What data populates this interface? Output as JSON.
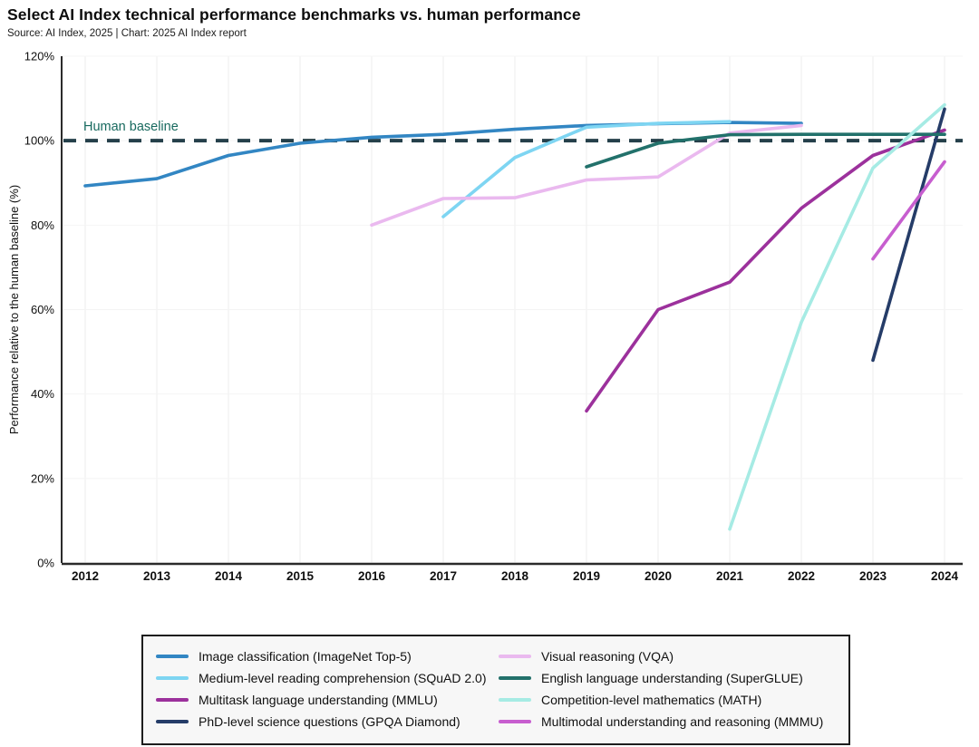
{
  "header": {
    "title": "Select AI Index technical performance benchmarks vs. human performance",
    "source": "Source: AI Index, 2025 | Chart: 2025 AI Index report"
  },
  "chart_data": {
    "type": "line",
    "title": "Select AI Index technical performance benchmarks vs. human performance",
    "xlabel": "",
    "ylabel": "Performance relative to the human baseline (%)",
    "ylim": [
      0,
      120
    ],
    "ytick_step": 20,
    "ytick_suffix": "%",
    "x_ticks": [
      2012,
      2013,
      2014,
      2015,
      2016,
      2017,
      2018,
      2019,
      2020,
      2021,
      2022,
      2023,
      2024
    ],
    "grid": true,
    "legend_position": "bottom",
    "legend_columns": 2,
    "baseline": {
      "label": "Human baseline",
      "value": 100,
      "line_color": "#25404a",
      "label_color": "#17695e"
    },
    "series": [
      {
        "name": "Image classification (ImageNet Top-5)",
        "color": "#3286c3",
        "points": [
          [
            2012,
            89.3
          ],
          [
            2013,
            91.0
          ],
          [
            2014,
            96.5
          ],
          [
            2015,
            99.4
          ],
          [
            2016,
            100.8
          ],
          [
            2017,
            101.5
          ],
          [
            2018,
            102.7
          ],
          [
            2019,
            103.6
          ],
          [
            2020,
            104.0
          ],
          [
            2021,
            104.3
          ],
          [
            2022,
            104.1
          ]
        ]
      },
      {
        "name": "Medium-level reading comprehension (SQuAD 2.0)",
        "color": "#7ed5f2",
        "points": [
          [
            2017,
            82.0
          ],
          [
            2018,
            96.0
          ],
          [
            2019,
            103.2
          ],
          [
            2020,
            104.1
          ],
          [
            2021,
            104.5
          ]
        ]
      },
      {
        "name": "Multitask language understanding (MMLU)",
        "color": "#9c319c",
        "points": [
          [
            2019,
            36.0
          ],
          [
            2020,
            60.0
          ],
          [
            2021,
            66.5
          ],
          [
            2022,
            84.0
          ],
          [
            2023,
            96.5
          ],
          [
            2024,
            102.5
          ]
        ]
      },
      {
        "name": "PhD-level science questions (GPQA Diamond)",
        "color": "#253c68",
        "points": [
          [
            2023,
            48.0
          ],
          [
            2024,
            107.5
          ]
        ]
      },
      {
        "name": "Visual reasoning (VQA)",
        "color": "#eab9ef",
        "points": [
          [
            2016,
            80.0
          ],
          [
            2017,
            86.3
          ],
          [
            2018,
            86.5
          ],
          [
            2019,
            90.7
          ],
          [
            2020,
            91.4
          ],
          [
            2021,
            101.8
          ],
          [
            2022,
            103.6
          ]
        ]
      },
      {
        "name": "English language understanding (SuperGLUE)",
        "color": "#22716b",
        "points": [
          [
            2019,
            93.8
          ],
          [
            2020,
            99.4
          ],
          [
            2021,
            101.4
          ],
          [
            2022,
            101.5
          ],
          [
            2023,
            101.5
          ],
          [
            2024,
            101.5
          ]
        ]
      },
      {
        "name": "Competition-level mathematics (MATH)",
        "color": "#a6ebe4",
        "points": [
          [
            2021,
            8.0
          ],
          [
            2022,
            57.0
          ],
          [
            2023,
            93.5
          ],
          [
            2024,
            108.5
          ]
        ]
      },
      {
        "name": "Multimodal understanding and reasoning (MMMU)",
        "color": "#c75ecf",
        "points": [
          [
            2023,
            72.0
          ],
          [
            2024,
            95.0
          ]
        ]
      }
    ]
  }
}
